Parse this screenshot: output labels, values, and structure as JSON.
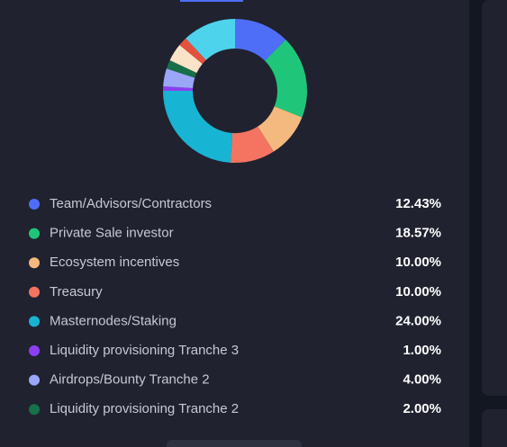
{
  "chart_data": {
    "type": "pie",
    "donut": true,
    "categories": [
      "Team/Advisors/Contractors",
      "Private Sale investor",
      "Ecosystem incentives",
      "Treasury",
      "Masternodes/Staking",
      "Liquidity provisioning Tranche 3",
      "Airdrops/Bounty Tranche 2",
      "Liquidity provisioning Tranche 2",
      null,
      null,
      null
    ],
    "values": [
      12.43,
      18.57,
      10,
      10,
      24,
      1,
      4,
      2,
      4,
      2,
      12
    ],
    "value_labels": [
      "12.43%",
      "18.57%",
      "10.00%",
      "10.00%",
      "24.00%",
      "1.00%",
      "4.00%",
      "2.00%",
      null,
      null,
      null
    ],
    "colors": [
      "#4f6ef7",
      "#1fc67a",
      "#f4b97e",
      "#f47461",
      "#18b4d4",
      "#8b3ff0",
      "#9aa7f7",
      "#17704a",
      "#fbe3c8",
      "#e3523f",
      "#4dd4ec"
    ]
  }
}
